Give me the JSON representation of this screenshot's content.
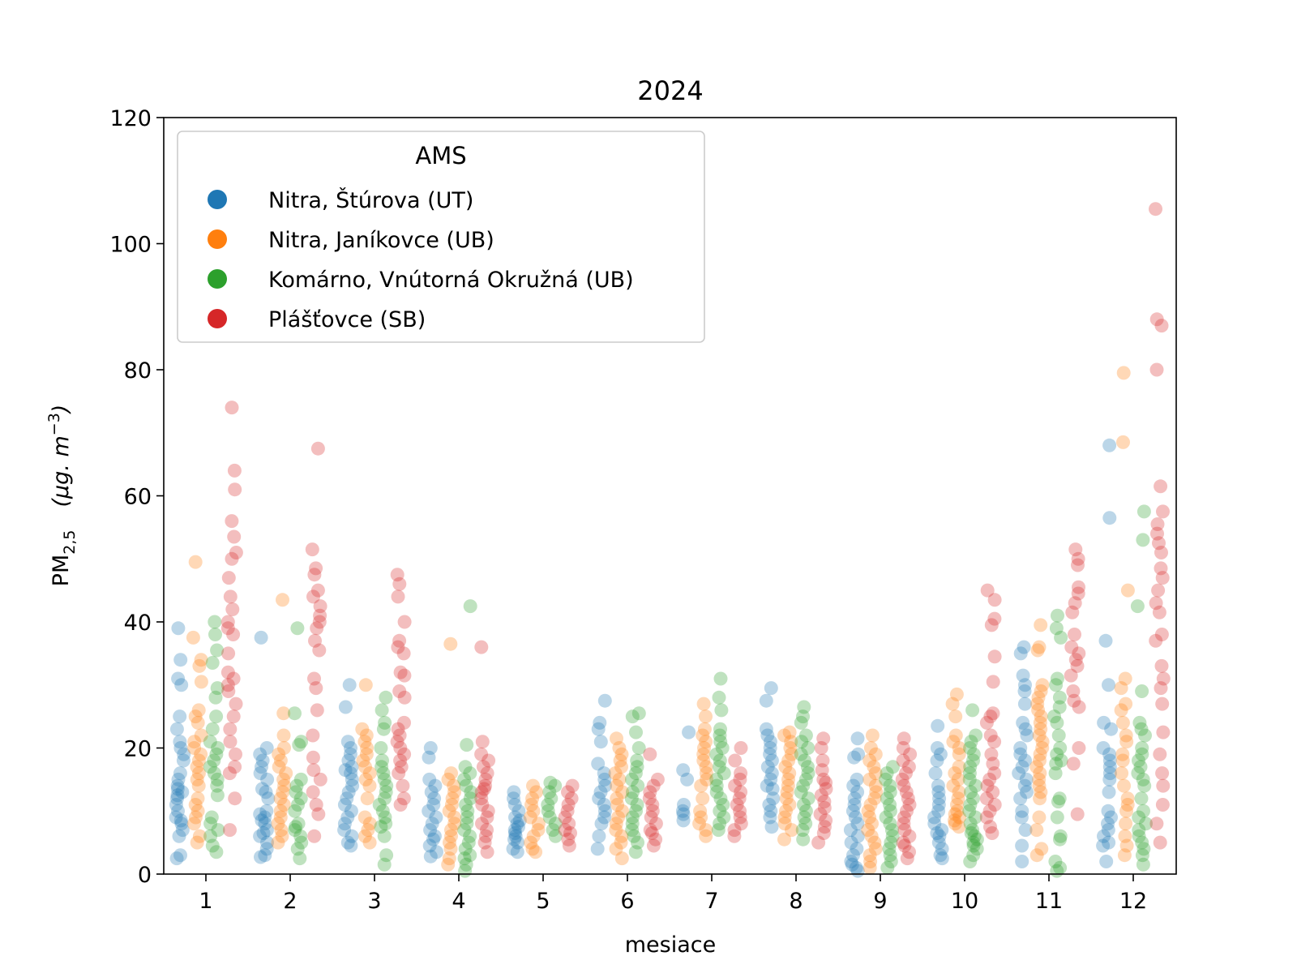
{
  "chart_data": {
    "type": "scatter",
    "title": "2024",
    "xlabel": "mesiace",
    "ylabel_main": "PM",
    "ylabel_sub": "2,5",
    "ylabel_unit": "(μg. m",
    "ylabel_unit_sup": "−3",
    "ylabel_unit_close": ")",
    "ylim": [
      0,
      120
    ],
    "yticks": [
      0,
      20,
      40,
      60,
      80,
      100,
      120
    ],
    "categories": [
      "1",
      "2",
      "3",
      "4",
      "5",
      "6",
      "7",
      "8",
      "9",
      "10",
      "11",
      "12"
    ],
    "legend": {
      "title": "AMS",
      "placement": "top-left"
    },
    "series": [
      {
        "name": "Nitra, Štúrova (UT)",
        "color": "#1f77b4",
        "values": [
          [
            2.5,
            3,
            6,
            7,
            8,
            8.5,
            9,
            10,
            11,
            12,
            12.5,
            13,
            13.5,
            14,
            15,
            16,
            18,
            19,
            20,
            21,
            23,
            25,
            30,
            31,
            34,
            39
          ],
          [
            2.7,
            3,
            4,
            5,
            6,
            6.5,
            7,
            8,
            8.5,
            9,
            9.5,
            10,
            12,
            13,
            13.5,
            15,
            16,
            17,
            18,
            19,
            20,
            37.5
          ],
          [
            4.5,
            5,
            6,
            7,
            8,
            9,
            10,
            11,
            12,
            13,
            14,
            15,
            16,
            16.5,
            17,
            18,
            19,
            20,
            21,
            26.5,
            30
          ],
          [
            2.8,
            3.5,
            4.5,
            5.5,
            6,
            7,
            8,
            9,
            10,
            11,
            12,
            13,
            14,
            15,
            18.5,
            20
          ],
          [
            3.5,
            4,
            5,
            5.5,
            6,
            6.5,
            7,
            7.5,
            8,
            8.5,
            9,
            10,
            11,
            12,
            13
          ],
          [
            4,
            6,
            8,
            9,
            10,
            11,
            12,
            13,
            14,
            15,
            16,
            17.5,
            21,
            23,
            24,
            27.5
          ],
          [
            8.5,
            9.5,
            10,
            11,
            15,
            16.5,
            22.5
          ],
          [
            7.5,
            9,
            10,
            11,
            12,
            13.5,
            14,
            15,
            16,
            17,
            18,
            19,
            20,
            21,
            22,
            23,
            27.5,
            29.5
          ],
          [
            0.5,
            1,
            1.5,
            2,
            3,
            4,
            5,
            6,
            7,
            8,
            9,
            10,
            11,
            12,
            13,
            14,
            15,
            18.5,
            19,
            21.5
          ],
          [
            2.5,
            3,
            4,
            5,
            6,
            6.5,
            7,
            8,
            9,
            10,
            11,
            12,
            13,
            14,
            16,
            18,
            19,
            20,
            23.5
          ],
          [
            2,
            4.5,
            7,
            9,
            10,
            12,
            13,
            14,
            15,
            16,
            17,
            18,
            19,
            20,
            22,
            23,
            24,
            27,
            29,
            30,
            31.5,
            35,
            36
          ],
          [
            2,
            4.5,
            5,
            6,
            7,
            8,
            9,
            10,
            13,
            15,
            16,
            17,
            18,
            19,
            20,
            23,
            24,
            30,
            37,
            56.5,
            68
          ]
        ]
      },
      {
        "name": "Nitra, Janíkovce (UB)",
        "color": "#ff7f0e",
        "values": [
          [
            5,
            6,
            8,
            9,
            10,
            11,
            12,
            14,
            15,
            16,
            17,
            18,
            19,
            20,
            21,
            22,
            24,
            25,
            26,
            30.5,
            33,
            34,
            37.5,
            49.5
          ],
          [
            5,
            6,
            7,
            8,
            9,
            10,
            11,
            12,
            13,
            14,
            15,
            16,
            17,
            18,
            19,
            20,
            22,
            25.5,
            43.5
          ],
          [
            5,
            6,
            7,
            8,
            9,
            12,
            14,
            15,
            16,
            17,
            18,
            19,
            20,
            21,
            22,
            23,
            30
          ],
          [
            1.5,
            2.5,
            4,
            5,
            6,
            7,
            8,
            9,
            10,
            11,
            12,
            13,
            14,
            15,
            16,
            36.5
          ],
          [
            3.5,
            4,
            5,
            6,
            7,
            8,
            9,
            10,
            11,
            12,
            13,
            14
          ],
          [
            2.5,
            4,
            5,
            6,
            7,
            8,
            9,
            10,
            11,
            12,
            13,
            14,
            15,
            16,
            17,
            18,
            19,
            20,
            21.5
          ],
          [
            6,
            7,
            8,
            9,
            10,
            12,
            14,
            15,
            16,
            17,
            18,
            19,
            20,
            21,
            22,
            23,
            25,
            27
          ],
          [
            5.5,
            7,
            8,
            9,
            10,
            11,
            12,
            13,
            14,
            15,
            16,
            17,
            18,
            19,
            20,
            21,
            22,
            22.5
          ],
          [
            1,
            2,
            3,
            4,
            5,
            6,
            7,
            8,
            9,
            10,
            11,
            12,
            13,
            14,
            15,
            16,
            17,
            18,
            19,
            20,
            22
          ],
          [
            7.5,
            8,
            8.5,
            9,
            9.5,
            10,
            11,
            12,
            13,
            14,
            15,
            16,
            17,
            19,
            20,
            21,
            22,
            25,
            27,
            28.5
          ],
          [
            3,
            4,
            7,
            9,
            12,
            13,
            14,
            15,
            16,
            17,
            18,
            19,
            20,
            21,
            22,
            23,
            24,
            25,
            26,
            27,
            28,
            29,
            30,
            35.5,
            36,
            39.5
          ],
          [
            3,
            4.5,
            6,
            8,
            10,
            11,
            12,
            14,
            16,
            18,
            19,
            21,
            22,
            24,
            26,
            27,
            29.5,
            31,
            45,
            68.5,
            79.5
          ]
        ]
      },
      {
        "name": "Komárno, Vnútorná Okružná (UB)",
        "color": "#2ca02c",
        "values": [
          [
            3.5,
            4.5,
            6,
            7,
            8,
            9,
            12.5,
            14,
            15,
            16,
            17,
            18,
            19,
            20,
            21,
            23,
            25,
            28,
            29.5,
            33.5,
            35.5,
            38,
            40
          ],
          [
            2.5,
            4,
            5,
            6,
            7,
            7.5,
            8,
            10,
            11,
            12,
            13,
            14,
            15,
            20.5,
            21,
            25.5,
            39
          ],
          [
            1.5,
            3,
            6,
            7.5,
            8,
            9,
            10,
            11,
            12,
            13,
            14,
            15,
            16,
            17,
            18,
            20,
            23,
            24,
            26,
            28
          ],
          [
            0.5,
            1.5,
            2.5,
            3,
            4,
            5,
            6,
            7,
            8,
            9,
            10,
            11,
            12,
            13,
            14,
            15,
            16,
            17,
            20.5,
            42.5
          ],
          [
            6,
            7,
            8,
            9,
            10,
            11,
            12,
            13,
            14,
            14.5
          ],
          [
            3.5,
            5,
            6,
            7,
            8,
            9,
            10,
            11,
            12,
            13,
            14,
            15,
            16,
            17,
            18,
            20,
            22.5,
            25,
            25.5
          ],
          [
            7,
            8,
            9,
            10,
            11,
            12,
            13,
            14,
            15,
            16,
            17,
            18,
            19,
            20,
            21,
            22,
            23,
            26,
            28,
            31
          ],
          [
            5.5,
            7,
            8,
            9,
            10,
            11,
            12,
            13,
            14,
            15,
            16,
            17,
            18,
            19,
            20,
            21,
            22,
            24,
            25,
            26.5
          ],
          [
            1,
            2,
            3,
            4,
            5,
            6,
            7,
            8,
            9,
            10,
            11,
            12,
            13,
            14,
            15,
            16,
            17
          ],
          [
            2,
            3,
            4,
            4.5,
            5,
            5.5,
            6,
            6.5,
            7,
            8,
            9,
            10,
            11,
            12,
            13,
            14,
            15,
            16,
            17,
            18,
            19,
            20,
            21,
            22,
            26
          ],
          [
            0.5,
            1,
            2,
            5.5,
            6,
            9,
            11.5,
            12,
            16,
            17.5,
            18,
            19,
            20,
            22,
            24,
            25,
            26.5,
            28,
            30,
            31,
            37.5,
            39,
            41
          ],
          [
            1.5,
            3,
            4,
            5,
            6,
            7,
            8,
            9,
            10,
            12,
            14,
            15,
            16,
            17,
            18,
            19,
            20,
            22,
            23,
            24,
            29,
            42.5,
            53,
            57.5
          ]
        ]
      },
      {
        "name": "Plášťovce (SB)",
        "color": "#d62728",
        "values": [
          [
            7,
            12,
            16,
            17,
            19,
            21,
            23,
            25,
            27,
            29,
            30,
            31,
            32,
            35,
            38,
            39,
            40,
            42,
            44,
            47,
            50,
            51,
            53.5,
            56,
            61,
            64,
            74
          ],
          [
            6,
            9.5,
            11,
            13,
            15,
            16.5,
            18.5,
            22,
            26,
            29.5,
            31,
            35.5,
            37,
            39,
            40,
            41,
            42.5,
            44,
            45,
            47.5,
            48.5,
            51.5,
            67.5
          ],
          [
            11,
            12,
            14,
            16,
            17,
            18,
            19,
            20,
            21,
            22,
            23,
            24,
            28,
            29,
            31.5,
            32,
            35,
            36,
            37,
            40,
            44,
            46,
            47.5
          ],
          [
            3.5,
            5,
            6,
            7,
            8,
            9,
            10,
            11,
            12,
            13,
            13.5,
            14,
            15,
            16,
            17,
            18,
            19,
            21,
            36
          ],
          [
            4.5,
            5.5,
            6.5,
            7,
            8,
            9,
            10,
            11,
            12,
            13,
            14
          ],
          [
            4.5,
            5.5,
            6.5,
            7,
            8,
            9,
            10,
            11,
            12,
            13,
            14,
            15,
            19
          ],
          [
            6,
            7,
            8,
            9,
            10,
            11,
            12,
            13,
            14,
            15,
            16,
            18,
            20
          ],
          [
            5,
            6.5,
            7.5,
            8.5,
            9.5,
            10.5,
            11.5,
            12.5,
            13.5,
            14.5,
            15,
            16.5,
            18,
            20,
            21.5
          ],
          [
            2.5,
            3.5,
            4.5,
            5,
            6,
            7,
            8,
            9,
            10,
            11,
            12,
            13,
            14,
            15,
            16,
            17,
            18,
            19,
            20,
            21.5
          ],
          [
            6.5,
            7.5,
            9,
            10,
            11,
            12,
            13,
            14,
            15,
            16,
            17.5,
            19,
            21,
            22,
            24,
            25,
            25.5,
            30.5,
            34.5,
            39.5,
            40.5,
            43.5,
            45
          ],
          [
            9.5,
            17.5,
            20,
            26.5,
            27.5,
            29,
            31.5,
            33,
            34,
            35,
            36,
            38,
            41.5,
            43,
            44.5,
            45.5,
            49,
            50,
            51.5
          ],
          [
            5,
            8,
            11,
            14,
            16,
            19,
            22.5,
            27,
            29.5,
            31,
            33,
            37,
            38,
            41.5,
            43,
            45,
            47,
            48.5,
            51,
            52.5,
            54,
            55.5,
            57.5,
            61.5,
            80,
            87,
            88,
            105.5
          ]
        ]
      }
    ]
  }
}
